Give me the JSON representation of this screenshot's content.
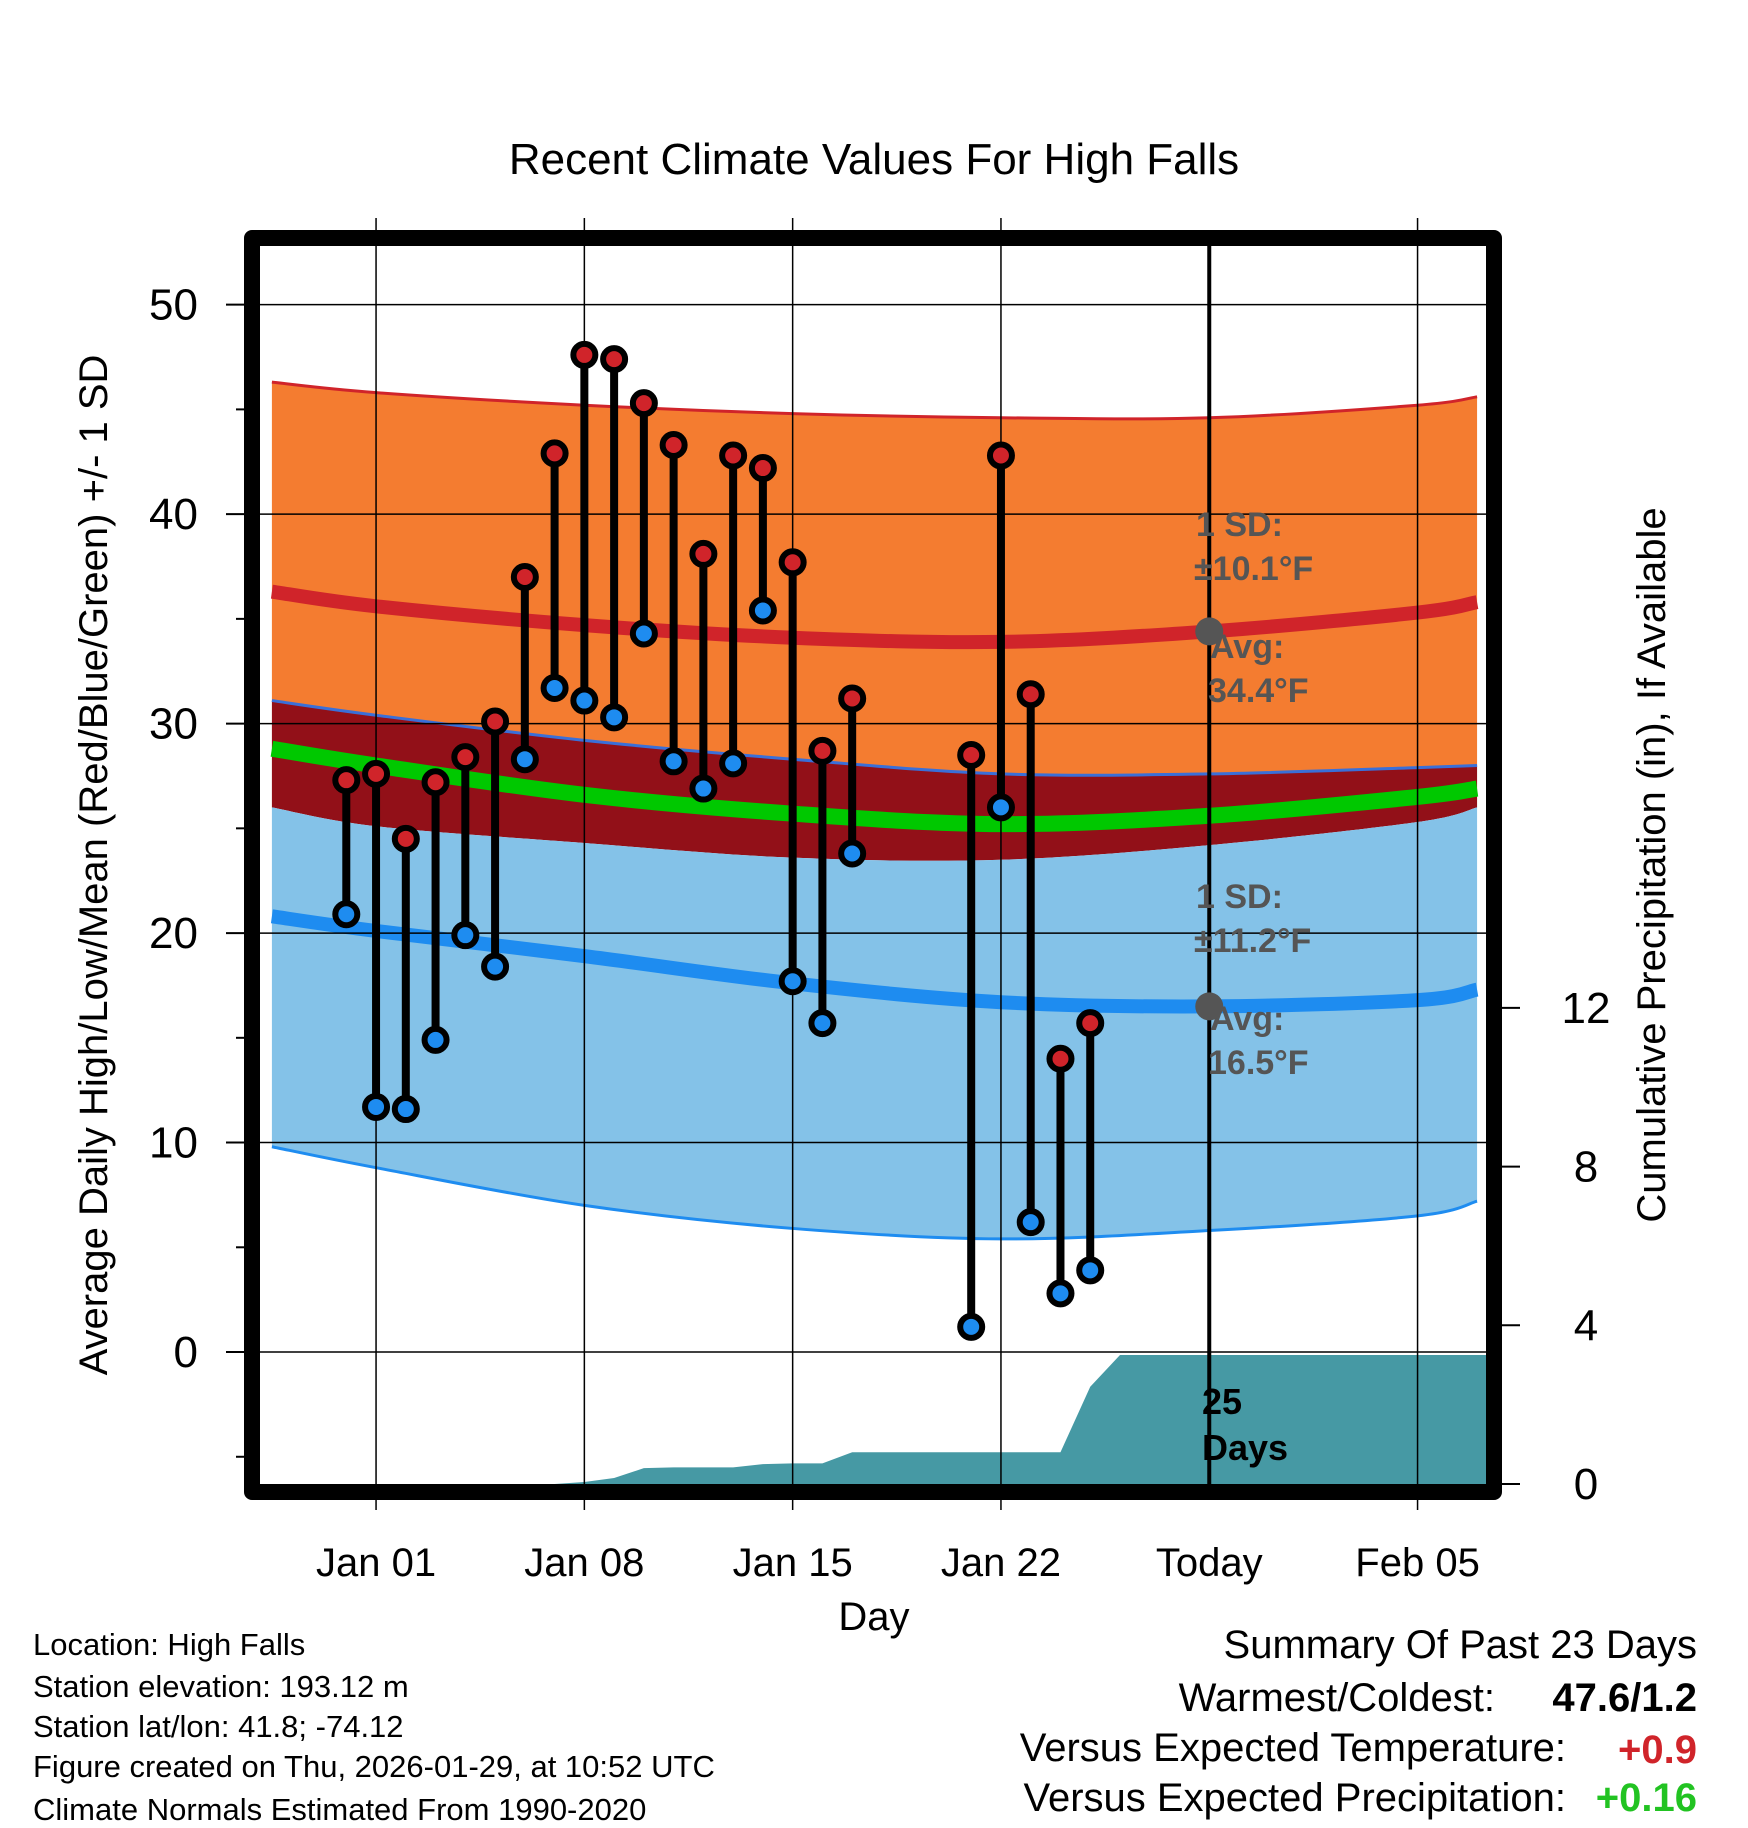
{
  "chart_data": {
    "type": "line",
    "title": "Recent Climate Values For High Falls",
    "xlabel": "Day",
    "ylabel": "Average Daily High/Low/Mean (Red/Blue/Green) +/- 1 SD",
    "y2label": "Cumulative Precipitation (in), If Available",
    "x_range_days": [
      -2.9,
      38.3
    ],
    "x_ticks": [
      {
        "day": 1,
        "label": "Jan 01"
      },
      {
        "day": 8,
        "label": "Jan 08"
      },
      {
        "day": 15,
        "label": "Jan 15"
      },
      {
        "day": 22,
        "label": "Jan 22"
      },
      {
        "day": 29,
        "label": "Today"
      },
      {
        "day": 36,
        "label": "Feb 05"
      }
    ],
    "ylim": [
      -6.3,
      52.8
    ],
    "y_ticks": [
      0,
      10,
      20,
      30,
      40,
      50
    ],
    "y2lim": [
      0,
      31.2
    ],
    "y2_ticks": [
      0,
      4,
      8,
      12
    ],
    "normals": {
      "days": [
        -2.5,
        1,
        8,
        15,
        22,
        29,
        36,
        38
      ],
      "high_mean": [
        36.3,
        35.6,
        34.7,
        34.1,
        33.9,
        34.4,
        35.3,
        35.8
      ],
      "high_upper": [
        46.3,
        45.8,
        45.2,
        44.8,
        44.6,
        44.6,
        45.2,
        45.6
      ],
      "high_lower": [
        31.1,
        30.4,
        29.2,
        28.3,
        27.6,
        27.6,
        27.9,
        28.0
      ],
      "low_mean": [
        20.8,
        20.1,
        18.9,
        17.6,
        16.7,
        16.5,
        16.8,
        17.3
      ],
      "low_upper": [
        26.0,
        25.1,
        24.3,
        23.6,
        23.5,
        24.2,
        25.3,
        26.0
      ],
      "low_lower": [
        9.8,
        8.8,
        7.0,
        5.9,
        5.4,
        5.8,
        6.5,
        7.2
      ],
      "mean": [
        28.8,
        28.0,
        26.6,
        25.7,
        25.2,
        25.6,
        26.5,
        26.9
      ],
      "today_high_avg": 34.4,
      "today_low_avg": 16.5,
      "high_sd_label": "1 SD:",
      "high_sd_value": "±10.1°F",
      "high_avg_label": "Avg:",
      "high_avg_value": "34.4°F",
      "low_sd_label": "1 SD:",
      "low_sd_value": "±11.2°F",
      "low_avg_label": "Avg:",
      "low_avg_value": "16.5°F"
    },
    "observations": [
      {
        "day": 0,
        "high": 27.3,
        "low": 20.9
      },
      {
        "day": 1,
        "high": 27.6,
        "low": 11.7
      },
      {
        "day": 2,
        "high": 24.5,
        "low": 11.6
      },
      {
        "day": 3,
        "high": 27.2,
        "low": 14.9
      },
      {
        "day": 4,
        "high": 28.4,
        "low": 19.9
      },
      {
        "day": 5,
        "high": 30.1,
        "low": 18.4
      },
      {
        "day": 6,
        "high": 37.0,
        "low": 28.3
      },
      {
        "day": 7,
        "high": 42.9,
        "low": 31.7
      },
      {
        "day": 8,
        "high": 47.6,
        "low": 31.1
      },
      {
        "day": 9,
        "high": 47.4,
        "low": 30.3
      },
      {
        "day": 10,
        "high": 45.3,
        "low": 34.3
      },
      {
        "day": 11,
        "high": 43.3,
        "low": 28.2
      },
      {
        "day": 12,
        "high": 38.1,
        "low": 26.9
      },
      {
        "day": 13,
        "high": 42.8,
        "low": 28.1
      },
      {
        "day": 14,
        "high": 42.2,
        "low": 35.4
      },
      {
        "day": 15,
        "high": 37.7,
        "low": 17.7
      },
      {
        "day": 16,
        "high": 28.7,
        "low": 15.7
      },
      {
        "day": 17,
        "high": 31.2,
        "low": 23.8
      },
      {
        "day": 21,
        "high": 28.5,
        "low": 1.2
      },
      {
        "day": 22,
        "high": 42.8,
        "low": 26.0
      },
      {
        "day": 23,
        "high": 31.4,
        "low": 6.2
      },
      {
        "day": 24,
        "high": 14.0,
        "low": 2.8
      },
      {
        "day": 25,
        "high": 15.7,
        "low": 3.9
      }
    ],
    "precipitation": {
      "days": [
        -2.9,
        7.0,
        8.0,
        9.0,
        10.0,
        11.0,
        12.0,
        13.0,
        14.0,
        15.0,
        16.0,
        17.0,
        18.0,
        23.0,
        24.0,
        25.0,
        26.0,
        27.0,
        29.0,
        38.3
      ],
      "cumulative": [
        0.0,
        0.0,
        0.05,
        0.15,
        0.4,
        0.42,
        0.42,
        0.42,
        0.5,
        0.52,
        0.52,
        0.8,
        0.8,
        0.8,
        0.8,
        2.45,
        3.25,
        3.25,
        3.25,
        3.25
      ]
    },
    "days_label": "25",
    "days_label_2": "Days"
  },
  "info": {
    "location": "Location: High Falls",
    "elevation": "Station elevation: 193.12 m",
    "latlon": "Station lat/lon: 41.8; -74.12",
    "created": "Figure created on Thu, 2026-01-29, at 10:52 UTC",
    "normals": "Climate Normals Estimated From 1990-2020"
  },
  "summary": {
    "title": "Summary Of Past 23 Days",
    "warmest_coldest_label": "Warmest/Coldest:",
    "warmest_coldest_value": "47.6/1.2",
    "temp_label": "Versus Expected Temperature:",
    "temp_value": "+0.9",
    "precip_label": "Versus Expected Precipitation:",
    "precip_value": "+0.16"
  },
  "colors": {
    "high_band": "#f47c30",
    "high_line": "#d0242a",
    "overlap_band": "#921018",
    "low_band": "#84c2e8",
    "low_line": "#1e8cf0",
    "mean_line": "#00c800",
    "precip": "#4699a4",
    "high_dot": "#d0242a",
    "low_dot": "#1e8cf0",
    "annot": "#555555",
    "positive_temp": "#d0242a",
    "positive_precip": "#22c322"
  }
}
